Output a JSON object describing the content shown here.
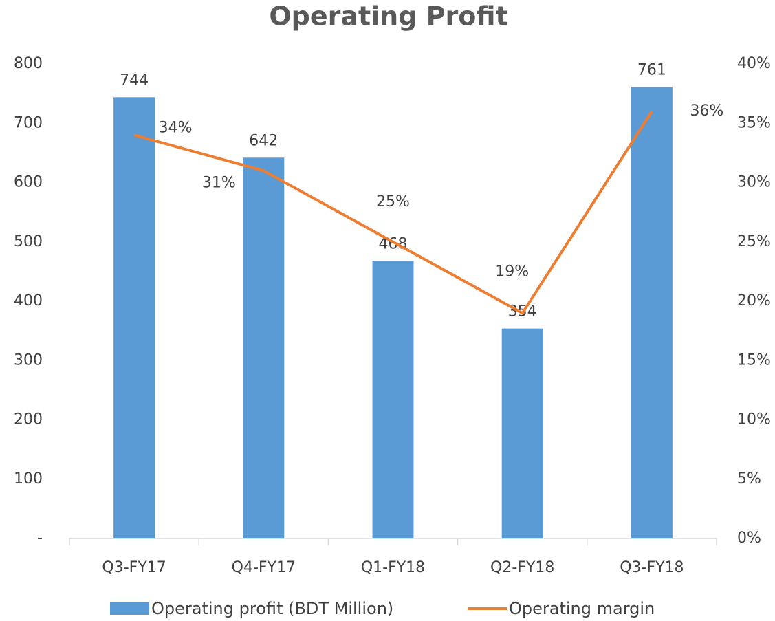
{
  "chart_data": {
    "type": "bar_line",
    "title": "Operating Profit",
    "categories": [
      "Q3-FY17",
      "Q4-FY17",
      "Q1-FY18",
      "Q2-FY18",
      "Q3-FY18"
    ],
    "series": [
      {
        "name": "Operating profit (BDT Million)",
        "color": "#5b9bd5",
        "type": "bar",
        "values": [
          744,
          642,
          468,
          354,
          761
        ]
      },
      {
        "name": "Operating margin",
        "color": "#ed7d31",
        "type": "line",
        "axis": "y2",
        "values": [
          34,
          31,
          25,
          19,
          36
        ],
        "value_labels": [
          "34%",
          "31%",
          "25%",
          "19%",
          "36%"
        ]
      }
    ],
    "ylim": [
      0,
      800
    ],
    "yticks": [
      {
        "value": 0,
        "label": "-"
      },
      100,
      200,
      300,
      400,
      500,
      600,
      700,
      800
    ],
    "y2lim": [
      0,
      40
    ],
    "y2ticks": [
      {
        "value": 0,
        "label": "0%"
      },
      {
        "value": 5,
        "label": "5%"
      },
      {
        "value": 10,
        "label": "10%"
      },
      {
        "value": 15,
        "label": "15%"
      },
      {
        "value": 20,
        "label": "20%"
      },
      {
        "value": 25,
        "label": "25%"
      },
      {
        "value": 30,
        "label": "30%"
      },
      {
        "value": 35,
        "label": "35%"
      },
      {
        "value": 40,
        "label": "40%"
      }
    ],
    "legend": "bottom"
  }
}
